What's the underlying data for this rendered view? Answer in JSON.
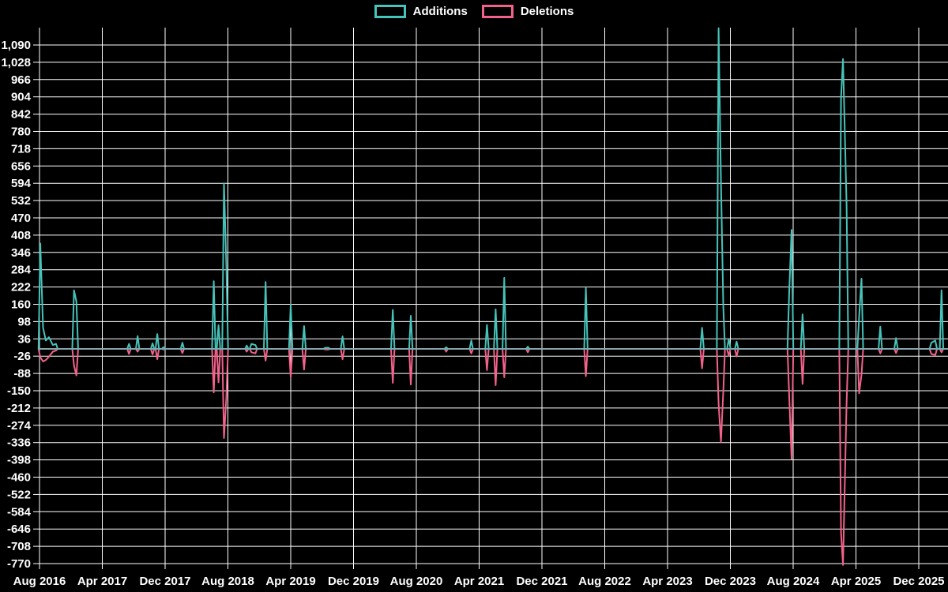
{
  "legend": {
    "items": [
      {
        "label": "Additions",
        "color": "#46c3ba"
      },
      {
        "label": "Deletions",
        "color": "#f2628b"
      }
    ]
  },
  "colors": {
    "background": "#000000",
    "grid": "#ffffff",
    "text": "#ffffff",
    "baseline": "#87a5ab",
    "additions": "#46c3ba",
    "deletions": "#f2628b"
  },
  "chart_data": {
    "type": "line",
    "title": "",
    "xlabel": "",
    "ylabel": "",
    "grid": true,
    "legend_position": "top-center",
    "y_axis": {
      "max": 1090,
      "min": -770,
      "step": 62,
      "tick_labels": [
        "1,090",
        "1,028",
        "966",
        "904",
        "842",
        "780",
        "718",
        "656",
        "594",
        "532",
        "470",
        "408",
        "346",
        "284",
        "222",
        "160",
        "98",
        "36",
        "-26",
        "-88",
        "-150",
        "-212",
        "-274",
        "-336",
        "-398",
        "-460",
        "-522",
        "-584",
        "-646",
        "-708",
        "-770"
      ]
    },
    "x_axis": {
      "start": "Aug 2016",
      "end": "Dec 2025",
      "months_per_tick": 8,
      "tick_labels": [
        "Aug 2016",
        "Apr 2017",
        "Dec 2017",
        "Aug 2018",
        "Apr 2019",
        "Dec 2019",
        "Aug 2020",
        "Apr 2021",
        "Dec 2021",
        "Aug 2022",
        "Apr 2023",
        "Dec 2023",
        "Aug 2024",
        "Apr 2025",
        "Dec 2025"
      ]
    },
    "series_names": [
      "Additions",
      "Deletions"
    ],
    "points_columns": [
      "months_after_aug_2016",
      "additions",
      "deletions"
    ],
    "points": [
      [
        0.1,
        378,
        -30
      ],
      [
        0.45,
        76,
        -45
      ],
      [
        0.8,
        30,
        -40
      ],
      [
        1.2,
        42,
        -28
      ],
      [
        1.7,
        14,
        -10
      ],
      [
        2.1,
        18,
        -6
      ],
      [
        4.4,
        210,
        -60
      ],
      [
        4.7,
        170,
        -95
      ],
      [
        11.4,
        18,
        -18
      ],
      [
        12.5,
        46,
        -10
      ],
      [
        14.4,
        20,
        -20
      ],
      [
        15.0,
        53,
        -37
      ],
      [
        15.8,
        6,
        -2
      ],
      [
        18.2,
        22,
        -15
      ],
      [
        22.2,
        243,
        -156
      ],
      [
        22.8,
        85,
        -120
      ],
      [
        23.5,
        594,
        -320
      ],
      [
        23.8,
        300,
        -175
      ],
      [
        26.4,
        12,
        -10
      ],
      [
        27.0,
        18,
        -12
      ],
      [
        27.5,
        14,
        -16
      ],
      [
        28.8,
        240,
        -42
      ],
      [
        32.0,
        160,
        -102
      ],
      [
        33.7,
        82,
        -74
      ],
      [
        36.4,
        4,
        -2
      ],
      [
        36.8,
        4,
        -2
      ],
      [
        38.6,
        45,
        -37
      ],
      [
        45.0,
        140,
        -122
      ],
      [
        47.3,
        119,
        -128
      ],
      [
        51.8,
        6,
        -10
      ],
      [
        55.0,
        30,
        -16
      ],
      [
        57.0,
        86,
        -76
      ],
      [
        58.1,
        142,
        -130
      ],
      [
        59.2,
        255,
        -102
      ],
      [
        62.2,
        8,
        -12
      ],
      [
        69.6,
        218,
        -98
      ],
      [
        84.4,
        76,
        -70
      ],
      [
        86.5,
        1150,
        -195
      ],
      [
        86.8,
        600,
        -334
      ],
      [
        87.1,
        150,
        -150
      ],
      [
        87.8,
        36,
        -25
      ],
      [
        88.8,
        26,
        -27
      ],
      [
        95.5,
        205,
        -170
      ],
      [
        95.8,
        427,
        -395
      ],
      [
        97.2,
        124,
        -126
      ],
      [
        102.1,
        900,
        -660
      ],
      [
        102.35,
        1040,
        -775
      ],
      [
        102.8,
        520,
        -197
      ],
      [
        104.4,
        114,
        -159
      ],
      [
        104.7,
        252,
        -93
      ],
      [
        107.1,
        80,
        -16
      ],
      [
        109.1,
        39,
        -15
      ],
      [
        113.6,
        22,
        -18
      ],
      [
        114.1,
        30,
        -22
      ],
      [
        114.9,
        210,
        -12
      ]
    ]
  }
}
